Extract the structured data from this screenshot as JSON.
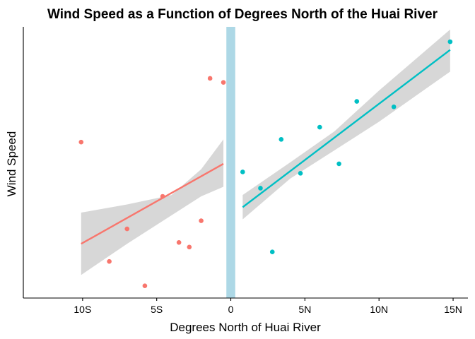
{
  "chart_data": {
    "type": "scatter",
    "title": "Wind Speed as a Function of Degrees North of the Huai River",
    "xlabel": "Degrees North of Huai River",
    "ylabel": "Wind Speed",
    "xlim": [
      -14,
      16
    ],
    "ylim": [
      0,
      1
    ],
    "grid": false,
    "legend": "none",
    "x_ticks": [
      {
        "value": -10,
        "label": "10S"
      },
      {
        "value": -5,
        "label": "5S"
      },
      {
        "value": 0,
        "label": "0"
      },
      {
        "value": 5,
        "label": "5N"
      },
      {
        "value": 10,
        "label": "10N"
      },
      {
        "value": 15,
        "label": "15N"
      }
    ],
    "y_ticks": [],
    "river_band": {
      "x_min": -0.3,
      "x_max": 0.3,
      "color": "#add8e6"
    },
    "series": [
      {
        "side": "south",
        "color": "#f8766d",
        "points": [
          {
            "x": -10.1,
            "y": 0.575
          },
          {
            "x": -8.2,
            "y": 0.135
          },
          {
            "x": -7.0,
            "y": 0.255
          },
          {
            "x": -5.8,
            "y": 0.045
          },
          {
            "x": -4.6,
            "y": 0.375
          },
          {
            "x": -3.5,
            "y": 0.205
          },
          {
            "x": -2.8,
            "y": 0.188
          },
          {
            "x": -2.0,
            "y": 0.285
          },
          {
            "x": -1.4,
            "y": 0.81
          },
          {
            "x": -0.5,
            "y": 0.795
          }
        ],
        "fit": {
          "x": [
            -10.1,
            -0.5
          ],
          "y": [
            0.2,
            0.495
          ]
        },
        "ci": {
          "x": [
            -10.1,
            -7,
            -4,
            -2,
            -0.5
          ],
          "lower": [
            0.085,
            0.2,
            0.305,
            0.375,
            0.41
          ],
          "upper": [
            0.315,
            0.345,
            0.38,
            0.475,
            0.585
          ]
        }
      },
      {
        "side": "north",
        "color": "#00bfc4",
        "points": [
          {
            "x": 0.8,
            "y": 0.465
          },
          {
            "x": 2.0,
            "y": 0.405
          },
          {
            "x": 2.8,
            "y": 0.17
          },
          {
            "x": 3.4,
            "y": 0.585
          },
          {
            "x": 4.7,
            "y": 0.46
          },
          {
            "x": 6.0,
            "y": 0.63
          },
          {
            "x": 7.3,
            "y": 0.495
          },
          {
            "x": 8.5,
            "y": 0.725
          },
          {
            "x": 11.0,
            "y": 0.705
          },
          {
            "x": 14.8,
            "y": 0.945
          }
        ],
        "fit": {
          "x": [
            0.8,
            14.8
          ],
          "y": [
            0.335,
            0.915
          ]
        },
        "ci": {
          "x": [
            0.8,
            4,
            7,
            10,
            14.8
          ],
          "lower": [
            0.29,
            0.44,
            0.545,
            0.65,
            0.835
          ],
          "upper": [
            0.38,
            0.5,
            0.615,
            0.765,
            0.99
          ]
        }
      }
    ]
  }
}
